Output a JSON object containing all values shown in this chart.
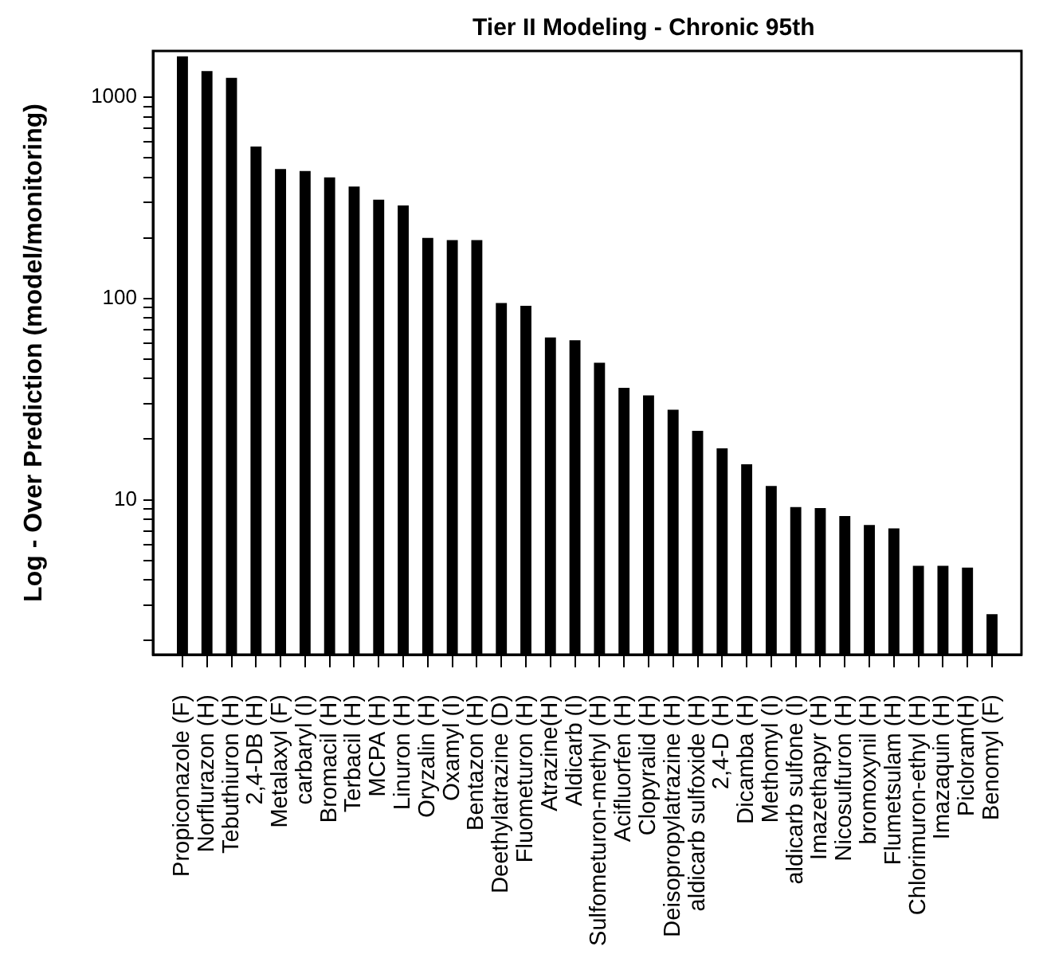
{
  "chart_data": {
    "type": "bar",
    "title": "Tier II Modeling - Chronic 95th",
    "ylabel": "Log - Over Prediction (model/monitoring)",
    "categories": [
      "Propiconazole (F)",
      "Norflurazon (H)",
      "Tebuthiuron (H)",
      "2,4-DB (H)",
      "Metalaxyl (F)",
      "carbaryl (I)",
      "Bromacil (H)",
      "Terbacil (H)",
      "MCPA (H)",
      "Linuron (H)",
      "Oryzalin (H)",
      "Oxamyl (I)",
      "Bentazon (H)",
      "Deethylatrazine (D)",
      "Fluometuron (H)",
      "Atrazine(H)",
      "Aldicarb (I)",
      "Sulfometuron-methyl (H)",
      "Acifluorfen (H)",
      "Clopyralid (H)",
      "Deisopropylatrazine (H)",
      "aldicarb sulfoxide (H)",
      "2,4-D (H)",
      "Dicamba (H)",
      "Methomyl (I)",
      "aldicarb sulfone (I)",
      "Imazethapyr (H)",
      "Nicosulfuron (H)",
      "bromoxynil (H)",
      "Flumetsulam (H)",
      "Chlorimuron-ethyl (H)",
      "Imazaquin (H)",
      "Picloram(H)",
      "Benomyl (F)"
    ],
    "values": [
      1600,
      1350,
      1250,
      570,
      440,
      430,
      400,
      360,
      310,
      290,
      200,
      195,
      195,
      95,
      92,
      64,
      62,
      48,
      36,
      33,
      28,
      22,
      18,
      15,
      11.7,
      9.2,
      9.1,
      8.3,
      7.5,
      7.2,
      4.7,
      4.7,
      4.6,
      2.7
    ],
    "color": "#000000",
    "log": true,
    "ylim": [
      1.7,
      1700
    ],
    "yticks": [
      {
        "value": 2,
        "label": null
      },
      {
        "value": 3,
        "label": null
      },
      {
        "value": 4,
        "label": null
      },
      {
        "value": 5,
        "label": null
      },
      {
        "value": 6,
        "label": null
      },
      {
        "value": 7,
        "label": null
      },
      {
        "value": 8,
        "label": null
      },
      {
        "value": 9,
        "label": null
      },
      10,
      {
        "value": 20,
        "label": null
      },
      {
        "value": 30,
        "label": null
      },
      {
        "value": 40,
        "label": null
      },
      {
        "value": 50,
        "label": null
      },
      {
        "value": 60,
        "label": null
      },
      {
        "value": 70,
        "label": null
      },
      {
        "value": 80,
        "label": null
      },
      {
        "value": 90,
        "label": null
      },
      100,
      {
        "value": 200,
        "label": null
      },
      {
        "value": 300,
        "label": null
      },
      {
        "value": 400,
        "label": null
      },
      {
        "value": 500,
        "label": null
      },
      {
        "value": 600,
        "label": null
      },
      {
        "value": 700,
        "label": null
      },
      {
        "value": 800,
        "label": null
      },
      {
        "value": 900,
        "label": null
      },
      1000
    ],
    "grid": false
  }
}
